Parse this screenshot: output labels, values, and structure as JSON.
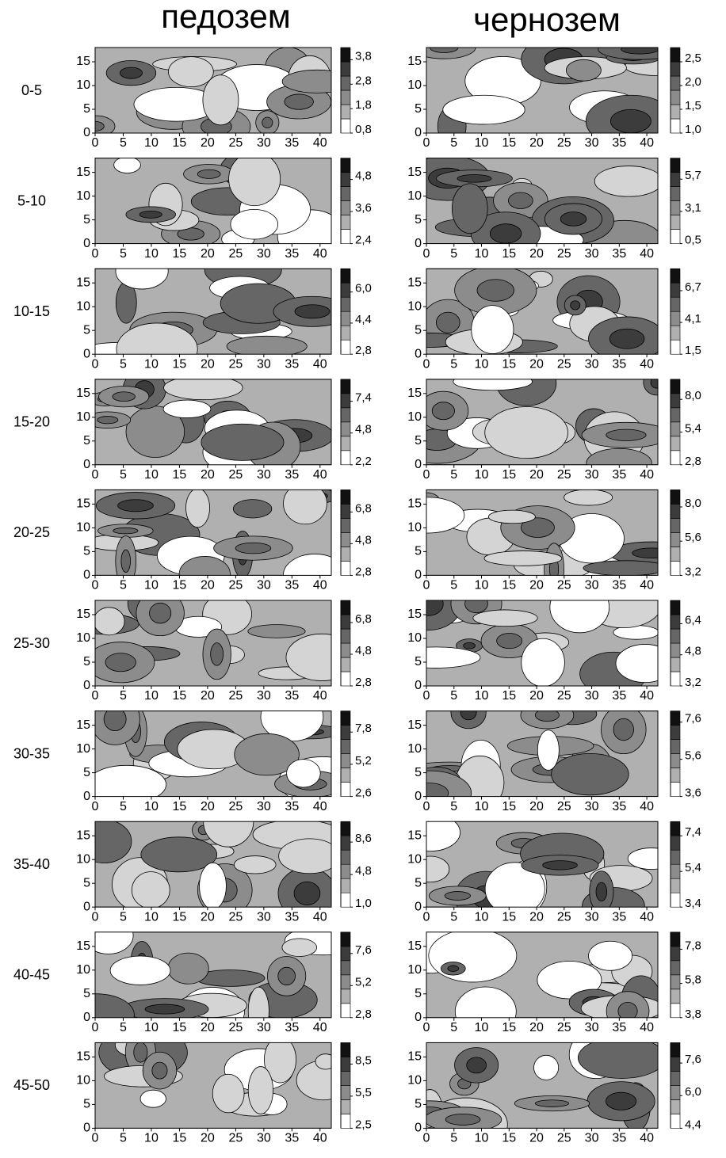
{
  "column_titles": [
    "педозем",
    "чернозем"
  ],
  "row_labels": [
    "0-5",
    "5-10",
    "10-15",
    "15-20",
    "20-25",
    "25-30",
    "30-35",
    "35-40",
    "40-45",
    "45-50"
  ],
  "chart_data": [
    {
      "type": "contour",
      "xlim": [
        0,
        42
      ],
      "ylim": [
        0,
        18
      ],
      "xticks": [
        0,
        5,
        10,
        15,
        20,
        25,
        30,
        35,
        40
      ],
      "yticks": [
        0,
        5,
        10,
        15
      ],
      "clim": [
        0.8,
        4.3
      ],
      "cticks": [
        {
          "value": 0.8,
          "label": "0,8"
        },
        {
          "value": 1.8,
          "label": "1,8"
        },
        {
          "value": 2.8,
          "label": "2,8"
        },
        {
          "value": 3.8,
          "label": "3,8"
        }
      ]
    },
    {
      "type": "contour",
      "xlim": [
        0,
        42
      ],
      "ylim": [
        0,
        18
      ],
      "xticks": [
        0,
        5,
        10,
        15,
        20,
        25,
        30,
        35,
        40
      ],
      "yticks": [
        0,
        5,
        10,
        15
      ],
      "clim": [
        1.0,
        2.8
      ],
      "cticks": [
        {
          "value": 1.0,
          "label": "1,0"
        },
        {
          "value": 1.5,
          "label": "1,5"
        },
        {
          "value": 2.0,
          "label": "2,0"
        },
        {
          "value": 2.5,
          "label": "2,5"
        }
      ]
    },
    {
      "type": "contour",
      "xlim": [
        0,
        42
      ],
      "ylim": [
        0,
        18
      ],
      "xticks": [
        0,
        5,
        10,
        15,
        20,
        25,
        30,
        35,
        40
      ],
      "yticks": [
        0,
        5,
        10,
        15
      ],
      "clim": [
        2.4,
        5.6
      ],
      "cticks": [
        {
          "value": 2.4,
          "label": "2,4"
        },
        {
          "value": 3.6,
          "label": "3,6"
        },
        {
          "value": 4.8,
          "label": "4,8"
        }
      ]
    },
    {
      "type": "contour",
      "xlim": [
        0,
        42
      ],
      "ylim": [
        0,
        18
      ],
      "xticks": [
        0,
        5,
        10,
        15,
        20,
        25,
        30,
        35,
        40
      ],
      "yticks": [
        0,
        5,
        10,
        15
      ],
      "clim": [
        0.5,
        7.4
      ],
      "cticks": [
        {
          "value": 0.5,
          "label": "0,5"
        },
        {
          "value": 3.1,
          "label": "3,1"
        },
        {
          "value": 5.7,
          "label": "5,7"
        }
      ]
    },
    {
      "type": "contour",
      "xlim": [
        0,
        42
      ],
      "ylim": [
        0,
        18
      ],
      "xticks": [
        0,
        5,
        10,
        15,
        20,
        25,
        30,
        35,
        40
      ],
      "yticks": [
        0,
        5,
        10,
        15
      ],
      "clim": [
        2.8,
        7.2
      ],
      "cticks": [
        {
          "value": 2.8,
          "label": "2,8"
        },
        {
          "value": 4.4,
          "label": "4,4"
        },
        {
          "value": 6.0,
          "label": "6,0"
        }
      ]
    },
    {
      "type": "contour",
      "xlim": [
        0,
        42
      ],
      "ylim": [
        0,
        18
      ],
      "xticks": [
        0,
        5,
        10,
        15,
        20,
        25,
        30,
        35,
        40
      ],
      "yticks": [
        0,
        5,
        10,
        15
      ],
      "clim": [
        1.5,
        8.5
      ],
      "cticks": [
        {
          "value": 1.5,
          "label": "1,5"
        },
        {
          "value": 4.1,
          "label": "4,1"
        },
        {
          "value": 6.7,
          "label": "6,7"
        }
      ]
    },
    {
      "type": "contour",
      "xlim": [
        0,
        42
      ],
      "ylim": [
        0,
        18
      ],
      "xticks": [
        0,
        5,
        10,
        15,
        20,
        25,
        30,
        35,
        40
      ],
      "yticks": [
        0,
        5,
        10,
        15
      ],
      "clim": [
        2.2,
        9.2
      ],
      "cticks": [
        {
          "value": 2.2,
          "label": "2,2"
        },
        {
          "value": 4.8,
          "label": "4,8"
        },
        {
          "value": 7.4,
          "label": "7,4"
        }
      ]
    },
    {
      "type": "contour",
      "xlim": [
        0,
        42
      ],
      "ylim": [
        0,
        18
      ],
      "xticks": [
        0,
        5,
        10,
        15,
        20,
        25,
        30,
        35,
        40
      ],
      "yticks": [
        0,
        5,
        10,
        15
      ],
      "clim": [
        2.8,
        9.6
      ],
      "cticks": [
        {
          "value": 2.8,
          "label": "2,8"
        },
        {
          "value": 5.4,
          "label": "5,4"
        },
        {
          "value": 8.0,
          "label": "8,0"
        }
      ]
    },
    {
      "type": "contour",
      "xlim": [
        0,
        42
      ],
      "ylim": [
        0,
        18
      ],
      "xticks": [
        0,
        5,
        10,
        15,
        20,
        25,
        30,
        35,
        40
      ],
      "yticks": [
        0,
        5,
        10,
        15
      ],
      "clim": [
        2.8,
        8.2
      ],
      "cticks": [
        {
          "value": 2.8,
          "label": "2,8"
        },
        {
          "value": 4.8,
          "label": "4,8"
        },
        {
          "value": 6.8,
          "label": "6,8"
        }
      ]
    },
    {
      "type": "contour",
      "xlim": [
        0,
        42
      ],
      "ylim": [
        0,
        18
      ],
      "xticks": [
        0,
        5,
        10,
        15,
        20,
        25,
        30,
        35,
        40
      ],
      "yticks": [
        0,
        5,
        10,
        15
      ],
      "clim": [
        3.2,
        9.2
      ],
      "cticks": [
        {
          "value": 3.2,
          "label": "3,2"
        },
        {
          "value": 5.6,
          "label": "5,6"
        },
        {
          "value": 8.0,
          "label": "8,0"
        }
      ]
    },
    {
      "type": "contour",
      "xlim": [
        0,
        42
      ],
      "ylim": [
        0,
        18
      ],
      "xticks": [
        0,
        5,
        10,
        15,
        20,
        25,
        30,
        35,
        40
      ],
      "yticks": [
        0,
        5,
        10,
        15
      ],
      "clim": [
        2.8,
        8.2
      ],
      "cticks": [
        {
          "value": 2.8,
          "label": "2,8"
        },
        {
          "value": 4.8,
          "label": "4,8"
        },
        {
          "value": 6.8,
          "label": "6,8"
        }
      ]
    },
    {
      "type": "contour",
      "xlim": [
        0,
        42
      ],
      "ylim": [
        0,
        18
      ],
      "xticks": [
        0,
        5,
        10,
        15,
        20,
        25,
        30,
        35,
        40
      ],
      "yticks": [
        0,
        5,
        10,
        15
      ],
      "clim": [
        3.2,
        7.6
      ],
      "cticks": [
        {
          "value": 3.2,
          "label": "3,2"
        },
        {
          "value": 4.8,
          "label": "4,8"
        },
        {
          "value": 6.4,
          "label": "6,4"
        }
      ]
    },
    {
      "type": "contour",
      "xlim": [
        0,
        42
      ],
      "ylim": [
        0,
        18
      ],
      "xticks": [
        0,
        5,
        10,
        15,
        20,
        25,
        30,
        35,
        40
      ],
      "yticks": [
        0,
        5,
        10,
        15
      ],
      "clim": [
        2.6,
        9.5
      ],
      "cticks": [
        {
          "value": 2.6,
          "label": "2,6"
        },
        {
          "value": 5.2,
          "label": "5,2"
        },
        {
          "value": 7.8,
          "label": "7,8"
        }
      ]
    },
    {
      "type": "contour",
      "xlim": [
        0,
        42
      ],
      "ylim": [
        0,
        18
      ],
      "xticks": [
        0,
        5,
        10,
        15,
        20,
        25,
        30,
        35,
        40
      ],
      "yticks": [
        0,
        5,
        10,
        15
      ],
      "clim": [
        3.6,
        8.2
      ],
      "cticks": [
        {
          "value": 3.6,
          "label": "3,6"
        },
        {
          "value": 5.6,
          "label": "5,6"
        },
        {
          "value": 7.6,
          "label": "7,6"
        }
      ]
    },
    {
      "type": "contour",
      "xlim": [
        0,
        42
      ],
      "ylim": [
        0,
        18
      ],
      "xticks": [
        0,
        5,
        10,
        15,
        20,
        25,
        30,
        35,
        40
      ],
      "yticks": [
        0,
        5,
        10,
        15
      ],
      "clim": [
        1.0,
        11.0
      ],
      "cticks": [
        {
          "value": 1.0,
          "label": "1,0"
        },
        {
          "value": 4.8,
          "label": "4,8"
        },
        {
          "value": 8.6,
          "label": "8,6"
        }
      ]
    },
    {
      "type": "contour",
      "xlim": [
        0,
        42
      ],
      "ylim": [
        0,
        18
      ],
      "xticks": [
        0,
        5,
        10,
        15,
        20,
        25,
        30,
        35,
        40
      ],
      "yticks": [
        0,
        5,
        10,
        15
      ],
      "clim": [
        3.4,
        8.2
      ],
      "cticks": [
        {
          "value": 3.4,
          "label": "3,4"
        },
        {
          "value": 5.4,
          "label": "5,4"
        },
        {
          "value": 7.4,
          "label": "7,4"
        }
      ]
    },
    {
      "type": "contour",
      "xlim": [
        0,
        42
      ],
      "ylim": [
        0,
        18
      ],
      "xticks": [
        0,
        5,
        10,
        15,
        20,
        25,
        30,
        35,
        40
      ],
      "yticks": [
        0,
        5,
        10,
        15
      ],
      "clim": [
        2.8,
        9.2
      ],
      "cticks": [
        {
          "value": 2.8,
          "label": "2,8"
        },
        {
          "value": 5.2,
          "label": "5,2"
        },
        {
          "value": 7.6,
          "label": "7,6"
        }
      ]
    },
    {
      "type": "contour",
      "xlim": [
        0,
        42
      ],
      "ylim": [
        0,
        18
      ],
      "xticks": [
        0,
        5,
        10,
        15,
        20,
        25,
        30,
        35,
        40
      ],
      "yticks": [
        0,
        5,
        10,
        15
      ],
      "clim": [
        3.8,
        8.8
      ],
      "cticks": [
        {
          "value": 3.8,
          "label": "3,8"
        },
        {
          "value": 5.8,
          "label": "5,8"
        },
        {
          "value": 7.8,
          "label": "7,8"
        }
      ]
    },
    {
      "type": "contour",
      "xlim": [
        0,
        42
      ],
      "ylim": [
        0,
        18
      ],
      "xticks": [
        0,
        5,
        10,
        15,
        20,
        25,
        30,
        35,
        40
      ],
      "yticks": [
        0,
        5,
        10,
        15
      ],
      "clim": [
        2.5,
        10.5
      ],
      "cticks": [
        {
          "value": 2.5,
          "label": "2,5"
        },
        {
          "value": 5.5,
          "label": "5,5"
        },
        {
          "value": 8.5,
          "label": "8,5"
        }
      ]
    },
    {
      "type": "contour",
      "xlim": [
        0,
        42
      ],
      "ylim": [
        0,
        18
      ],
      "xticks": [
        0,
        5,
        10,
        15,
        20,
        25,
        30,
        35,
        40
      ],
      "yticks": [
        0,
        5,
        10,
        15
      ],
      "clim": [
        4.4,
        8.6
      ],
      "cticks": [
        {
          "value": 4.4,
          "label": "4,4"
        },
        {
          "value": 6.0,
          "label": "6,0"
        },
        {
          "value": 7.6,
          "label": "7,6"
        }
      ]
    }
  ]
}
